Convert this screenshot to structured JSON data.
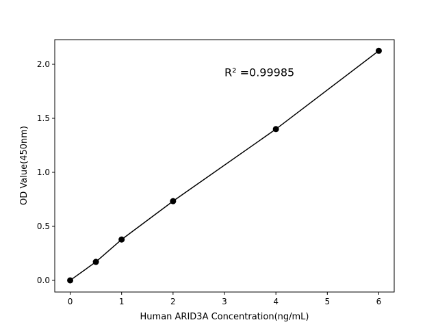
{
  "chart_data": {
    "type": "line",
    "title": "",
    "xlabel": "Human ARID3A Concentration(ng/mL)",
    "ylabel": "OD Value(450nm)",
    "x": [
      0,
      0.5,
      1,
      2,
      4,
      6
    ],
    "series": [
      {
        "values": [
          0.0,
          0.171,
          0.378,
          0.733,
          1.4,
          2.125
        ],
        "color": "#000000",
        "marker": "circle"
      }
    ],
    "xlim": [
      -0.3,
      6.3
    ],
    "ylim": [
      -0.108,
      2.228
    ],
    "xticks": [
      0,
      1,
      2,
      3,
      4,
      5,
      6
    ],
    "xtick_labels": [
      "0",
      "1",
      "2",
      "3",
      "4",
      "5",
      "6"
    ],
    "yticks": [
      0.0,
      0.5,
      1.0,
      1.5,
      2.0
    ],
    "ytick_labels": [
      "0.0",
      "0.5",
      "1.0",
      "1.5",
      "2.0"
    ],
    "grid": false,
    "annotation": {
      "text": "R² =0.99985",
      "x": 3.0,
      "y": 1.92
    }
  }
}
